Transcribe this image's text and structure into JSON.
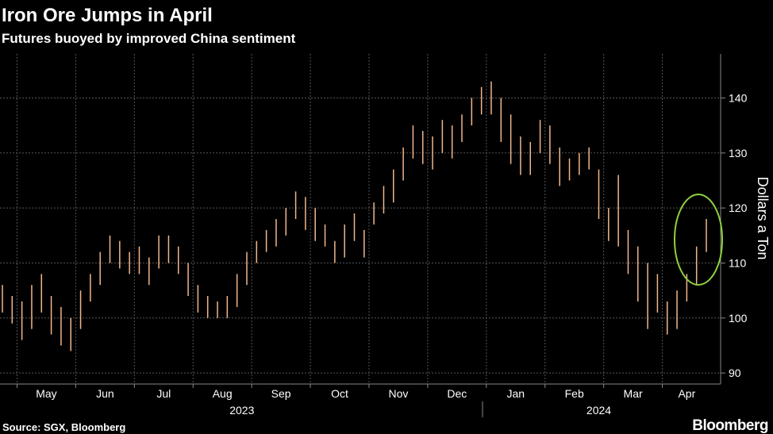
{
  "chart_data": {
    "type": "ohlc",
    "title": "Iron Ore Jumps in April",
    "subtitle": "Futures buoyed by improved China sentiment",
    "y_label": "Dollars a Ton",
    "source": "Source: SGX, Bloomberg",
    "brand": "Bloomberg",
    "color": "#f2b68a",
    "annotation_color": "#8fd13f",
    "x": [
      "2023-04",
      "2023-04",
      "2023-05",
      "2023-05",
      "2023-05",
      "2023-05",
      "2023-05",
      "2023-05",
      "2023-06",
      "2023-06",
      "2023-06",
      "2023-06",
      "2023-06",
      "2023-06",
      "2023-07",
      "2023-07",
      "2023-07",
      "2023-07",
      "2023-07",
      "2023-07",
      "2023-08",
      "2023-08",
      "2023-08",
      "2023-08",
      "2023-08",
      "2023-08",
      "2023-09",
      "2023-09",
      "2023-09",
      "2023-09",
      "2023-09",
      "2023-09",
      "2023-10",
      "2023-10",
      "2023-10",
      "2023-10",
      "2023-10",
      "2023-10",
      "2023-11",
      "2023-11",
      "2023-11",
      "2023-11",
      "2023-11",
      "2023-11",
      "2023-12",
      "2023-12",
      "2023-12",
      "2023-12",
      "2023-12",
      "2023-12",
      "2024-01",
      "2024-01",
      "2024-01",
      "2024-01",
      "2024-01",
      "2024-01",
      "2024-02",
      "2024-02",
      "2024-02",
      "2024-02",
      "2024-02",
      "2024-02",
      "2024-03",
      "2024-03",
      "2024-03",
      "2024-03",
      "2024-03",
      "2024-03",
      "2024-04",
      "2024-04",
      "2024-04",
      "2024-04",
      "2024-04"
    ],
    "high": [
      106,
      104,
      103,
      106,
      108,
      104,
      102,
      100,
      105,
      108,
      112,
      115,
      114,
      112,
      113,
      111,
      115,
      115,
      113,
      110,
      106,
      104,
      103,
      104,
      108,
      112,
      114,
      116,
      118,
      120,
      123,
      122,
      120,
      117,
      114,
      117,
      119,
      116,
      121,
      124,
      127,
      131,
      135,
      134,
      133,
      136,
      135,
      137,
      140,
      142,
      143,
      140,
      137,
      133,
      132,
      136,
      135,
      131,
      129,
      130,
      131,
      127,
      120,
      126,
      116,
      113,
      110,
      108,
      103,
      105,
      108,
      113,
      118
    ],
    "low": [
      101,
      99,
      96,
      98,
      101,
      97,
      95,
      94,
      98,
      103,
      106,
      110,
      109,
      108,
      108,
      106,
      109,
      110,
      108,
      104,
      101,
      100,
      100,
      100,
      102,
      106,
      110,
      112,
      113,
      115,
      118,
      116,
      114,
      113,
      110,
      111,
      114,
      111,
      117,
      119,
      121,
      125,
      129,
      128,
      127,
      130,
      129,
      132,
      135,
      137,
      137,
      132,
      128,
      126,
      126,
      130,
      128,
      124,
      125,
      126,
      127,
      118,
      114,
      113,
      108,
      103,
      98,
      101,
      97,
      98,
      103,
      106,
      112
    ],
    "xticks": [
      {
        "value": "2023-05",
        "label": "May"
      },
      {
        "value": "2023-06",
        "label": "Jun"
      },
      {
        "value": "2023-07",
        "label": "Jul"
      },
      {
        "value": "2023-08",
        "label": "Aug"
      },
      {
        "value": "2023-09",
        "label": "Sep"
      },
      {
        "value": "2023-10",
        "label": "Oct"
      },
      {
        "value": "2023-11",
        "label": "Nov"
      },
      {
        "value": "2023-12",
        "label": "Dec"
      },
      {
        "value": "2024-01",
        "label": "Jan"
      },
      {
        "value": "2024-02",
        "label": "Feb"
      },
      {
        "value": "2024-03",
        "label": "Mar"
      },
      {
        "value": "2024-04",
        "label": "Apr"
      }
    ],
    "years": [
      "2023",
      "2024"
    ],
    "ylim": [
      88,
      148
    ],
    "yticks": [
      90,
      100,
      110,
      120,
      130,
      140
    ],
    "grid": true
  }
}
